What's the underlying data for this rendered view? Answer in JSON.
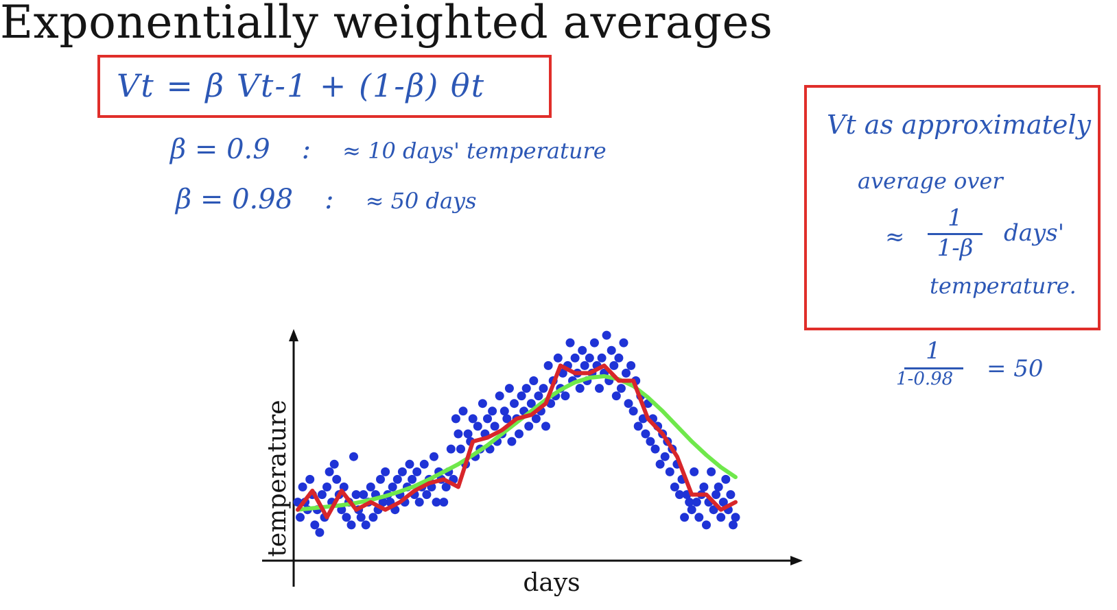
{
  "slide": {
    "title": "Exponentially weighted averages"
  },
  "annotations": {
    "formula": "Vt = β Vt-1  +  (1-β) θt",
    "beta_rows": [
      {
        "beta": "β = 0.9",
        "sep": ":",
        "desc": "≈ 10 days' temperature"
      },
      {
        "beta": "β = 0.98",
        "sep": ":",
        "desc": "≈ 50 days"
      }
    ],
    "note": {
      "line1": "Vt as approximately",
      "line2": "average over",
      "approx": "≈",
      "frac_num": "1",
      "frac_den": "1-β",
      "days": "days'",
      "line4": "temperature."
    },
    "calc": {
      "num": "1",
      "den": "1-0.98",
      "result": "= 50"
    }
  },
  "chart_data": {
    "type": "line",
    "xlabel": "days",
    "ylabel": "temperature",
    "axes": "arrows only, no ticks or tick labels",
    "grid": false,
    "x": [
      0,
      6,
      12,
      18,
      24,
      30,
      36,
      42,
      48,
      54,
      60,
      66,
      72,
      78,
      84,
      90,
      96,
      102,
      108,
      114,
      120,
      126,
      132,
      138,
      144,
      150,
      156,
      162,
      168,
      174,
      180
    ],
    "series": [
      {
        "values": [
          4,
          6.5,
          3,
          6.5,
          4,
          5,
          4,
          5,
          6.5,
          7.5,
          8,
          7,
          13,
          13.5,
          14.5,
          16,
          16.5,
          18,
          23,
          22,
          22,
          23,
          21,
          21,
          16,
          14,
          11,
          6,
          6,
          4,
          5
        ],
        "color": "#d8262a",
        "style": "line"
      },
      {
        "values": [
          4,
          4.2,
          4.4,
          4.6,
          4.9,
          5.3,
          5.8,
          6.4,
          7.1,
          8,
          9,
          10,
          11.2,
          12.5,
          14,
          15.5,
          17,
          18.5,
          19.8,
          20.8,
          21.4,
          21.6,
          21.2,
          20.3,
          18.8,
          17,
          15,
          13,
          11.2,
          9.6,
          8.3
        ],
        "color": "#6fe84b",
        "style": "line"
      },
      {
        "color": "#1f33d6",
        "style": "scatter",
        "points": [
          [
            0,
            5
          ],
          [
            1,
            3
          ],
          [
            2,
            7
          ],
          [
            3,
            5
          ],
          [
            4,
            4
          ],
          [
            5,
            8
          ],
          [
            6,
            6
          ],
          [
            7,
            2
          ],
          [
            8,
            4
          ],
          [
            9,
            1
          ],
          [
            10,
            6
          ],
          [
            11,
            3
          ],
          [
            12,
            7
          ],
          [
            13,
            9
          ],
          [
            14,
            5
          ],
          [
            15,
            10
          ],
          [
            16,
            8
          ],
          [
            17,
            6
          ],
          [
            18,
            4
          ],
          [
            19,
            7
          ],
          [
            20,
            3
          ],
          [
            21,
            5
          ],
          [
            22,
            2
          ],
          [
            23,
            11
          ],
          [
            24,
            6
          ],
          [
            25,
            4
          ],
          [
            26,
            3
          ],
          [
            27,
            6
          ],
          [
            28,
            2
          ],
          [
            29,
            5
          ],
          [
            30,
            7
          ],
          [
            31,
            3
          ],
          [
            32,
            6
          ],
          [
            33,
            4
          ],
          [
            34,
            8
          ],
          [
            35,
            5
          ],
          [
            36,
            9
          ],
          [
            37,
            6
          ],
          [
            38,
            5
          ],
          [
            39,
            7
          ],
          [
            40,
            4
          ],
          [
            41,
            8
          ],
          [
            42,
            6
          ],
          [
            43,
            9
          ],
          [
            44,
            5
          ],
          [
            45,
            7
          ],
          [
            46,
            10
          ],
          [
            47,
            8
          ],
          [
            48,
            6
          ],
          [
            49,
            9
          ],
          [
            50,
            5
          ],
          [
            51,
            7
          ],
          [
            52,
            10
          ],
          [
            53,
            6
          ],
          [
            54,
            8
          ],
          [
            55,
            7
          ],
          [
            56,
            11
          ],
          [
            57,
            5
          ],
          [
            58,
            9
          ],
          [
            59,
            8
          ],
          [
            60,
            5
          ],
          [
            61,
            7
          ],
          [
            62,
            9
          ],
          [
            63,
            12
          ],
          [
            64,
            8
          ],
          [
            65,
            16
          ],
          [
            66,
            14
          ],
          [
            67,
            12
          ],
          [
            68,
            17
          ],
          [
            69,
            10
          ],
          [
            70,
            14
          ],
          [
            71,
            13
          ],
          [
            72,
            16
          ],
          [
            73,
            11
          ],
          [
            74,
            15
          ],
          [
            75,
            12
          ],
          [
            76,
            18
          ],
          [
            77,
            14
          ],
          [
            78,
            16
          ],
          [
            79,
            12
          ],
          [
            80,
            17
          ],
          [
            81,
            15
          ],
          [
            82,
            13
          ],
          [
            83,
            19
          ],
          [
            84,
            14
          ],
          [
            85,
            17
          ],
          [
            86,
            16
          ],
          [
            87,
            20
          ],
          [
            88,
            13
          ],
          [
            89,
            18
          ],
          [
            90,
            16
          ],
          [
            91,
            14
          ],
          [
            92,
            19
          ],
          [
            93,
            17
          ],
          [
            94,
            20
          ],
          [
            95,
            15
          ],
          [
            96,
            18
          ],
          [
            97,
            21
          ],
          [
            98,
            16
          ],
          [
            99,
            19
          ],
          [
            100,
            17
          ],
          [
            101,
            20
          ],
          [
            102,
            15
          ],
          [
            103,
            23
          ],
          [
            104,
            18
          ],
          [
            105,
            21
          ],
          [
            106,
            19
          ],
          [
            107,
            24
          ],
          [
            108,
            20
          ],
          [
            109,
            22
          ],
          [
            110,
            19
          ],
          [
            111,
            23
          ],
          [
            112,
            26
          ],
          [
            113,
            21
          ],
          [
            114,
            24
          ],
          [
            115,
            22
          ],
          [
            116,
            20
          ],
          [
            117,
            25
          ],
          [
            118,
            23
          ],
          [
            119,
            21
          ],
          [
            120,
            24
          ],
          [
            121,
            22
          ],
          [
            122,
            26
          ],
          [
            123,
            23
          ],
          [
            124,
            20
          ],
          [
            125,
            24
          ],
          [
            126,
            22
          ],
          [
            127,
            27
          ],
          [
            128,
            21
          ],
          [
            129,
            25
          ],
          [
            130,
            23
          ],
          [
            131,
            19
          ],
          [
            132,
            24
          ],
          [
            133,
            20
          ],
          [
            134,
            26
          ],
          [
            135,
            22
          ],
          [
            136,
            18
          ],
          [
            137,
            23
          ],
          [
            138,
            17
          ],
          [
            139,
            21
          ],
          [
            140,
            15
          ],
          [
            141,
            19
          ],
          [
            142,
            16
          ],
          [
            143,
            14
          ],
          [
            144,
            18
          ],
          [
            145,
            13
          ],
          [
            146,
            16
          ],
          [
            147,
            12
          ],
          [
            148,
            15
          ],
          [
            149,
            10
          ],
          [
            150,
            14
          ],
          [
            151,
            11
          ],
          [
            152,
            13
          ],
          [
            153,
            9
          ],
          [
            154,
            12
          ],
          [
            155,
            7
          ],
          [
            156,
            10
          ],
          [
            157,
            6
          ],
          [
            158,
            8
          ],
          [
            159,
            3
          ],
          [
            160,
            6
          ],
          [
            161,
            5
          ],
          [
            162,
            4
          ],
          [
            163,
            9
          ],
          [
            164,
            5
          ],
          [
            165,
            3
          ],
          [
            166,
            6
          ],
          [
            167,
            7
          ],
          [
            168,
            2
          ],
          [
            169,
            5
          ],
          [
            170,
            9
          ],
          [
            171,
            4
          ],
          [
            172,
            6
          ],
          [
            173,
            7
          ],
          [
            174,
            3
          ],
          [
            175,
            5
          ],
          [
            176,
            8
          ],
          [
            177,
            4
          ],
          [
            178,
            6
          ],
          [
            179,
            2
          ],
          [
            180,
            3
          ]
        ]
      }
    ]
  }
}
